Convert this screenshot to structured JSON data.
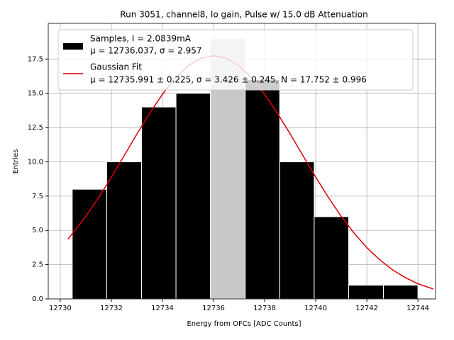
{
  "chart_data": {
    "type": "histogram",
    "title": "Run 3051, channel8, lo gain, Pulse w/ 15.0 dB Attenuation",
    "xlabel": "Energy from OFCs [ADC Counts]",
    "ylabel": "Entries",
    "bins": [
      12730.47,
      12731.82,
      12733.18,
      12734.53,
      12735.88,
      12737.24,
      12738.59,
      12739.94,
      12741.29,
      12742.65,
      12744.0
    ],
    "counts": [
      8,
      10,
      14,
      15,
      19,
      16,
      10,
      6,
      1,
      1
    ],
    "bar_colors": [
      "#000000",
      "#000000",
      "#000000",
      "#000000",
      "#c8c8c8",
      "#000000",
      "#000000",
      "#000000",
      "#000000",
      "#000000"
    ],
    "hist_name": [
      "Samples, I = 2.0839mA",
      "μ = 12736.037, σ = 2.957"
    ],
    "fit": {
      "name": [
        "Gaussian Fit",
        "μ = 12735.991 ± 0.225, σ = 3.426 ± 0.245, N = 17.752 ± 0.996"
      ],
      "color": "#e00000",
      "x": [
        12730.3,
        12731,
        12731.5,
        12732,
        12732.5,
        12733,
        12733.5,
        12734,
        12734.5,
        12735,
        12735.5,
        12736,
        12736.5,
        12737,
        12737.5,
        12738,
        12738.5,
        12739,
        12739.5,
        12740,
        12740.5,
        12741,
        12741.5,
        12742,
        12742.5,
        12743,
        12743.5,
        12744,
        12744.6
      ],
      "values": [
        4.35,
        6.02,
        7.39,
        8.88,
        10.45,
        12.03,
        13.55,
        14.93,
        16.1,
        17.0,
        17.56,
        17.75,
        17.56,
        17.0,
        16.1,
        14.93,
        13.55,
        12.03,
        10.45,
        8.88,
        7.39,
        6.02,
        4.8,
        3.74,
        2.86,
        2.13,
        1.56,
        1.11,
        0.72
      ]
    },
    "xlim": [
      12729.53,
      12744.69
    ],
    "ylim": [
      0,
      20.1
    ],
    "xticks": [
      12730,
      12732,
      12734,
      12736,
      12738,
      12740,
      12742,
      12744
    ],
    "yticks": [
      {
        "value": 0,
        "label": "0.0"
      },
      2.5,
      {
        "value": 5,
        "label": "5.0"
      },
      7.5,
      {
        "value": 10,
        "label": "10.0"
      },
      12.5,
      {
        "value": 15,
        "label": "15.0"
      },
      17.5
    ],
    "grid": true,
    "legend": "upper left"
  }
}
